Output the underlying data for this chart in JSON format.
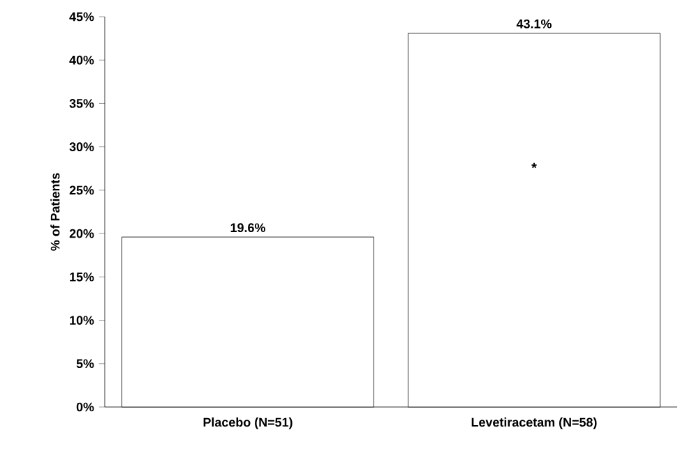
{
  "chart_data": {
    "type": "bar",
    "ylabel": "% of Patients",
    "categories": [
      "Placebo (N=51)",
      "Levetiracetam (N=58)"
    ],
    "values": [
      19.6,
      43.1
    ],
    "value_labels": [
      "19.6%",
      "43.1%"
    ],
    "color": "#ffffff",
    "ylim": [
      0,
      45
    ],
    "yticks": [
      {
        "value": 0,
        "label": "0%"
      },
      {
        "value": 5,
        "label": "5%"
      },
      {
        "value": 10,
        "label": "10%"
      },
      {
        "value": 15,
        "label": "15%"
      },
      {
        "value": 20,
        "label": "20%"
      },
      {
        "value": 25,
        "label": "25%"
      },
      {
        "value": 30,
        "label": "30%"
      },
      {
        "value": 35,
        "label": "35%"
      },
      {
        "value": 40,
        "label": "40%"
      },
      {
        "value": 45,
        "label": "45%"
      }
    ],
    "annotations": [
      "*"
    ],
    "grid": false
  }
}
